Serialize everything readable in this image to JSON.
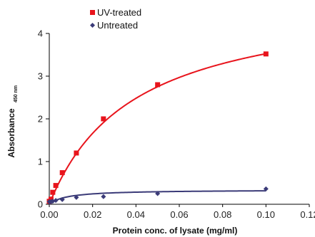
{
  "chart_data": {
    "type": "scatter",
    "xlabel": "Protein conc. of lysate (mg/ml)",
    "ylabel": "Absorbance",
    "ylabel_subscript": "450 nm",
    "xlim": [
      0,
      0.12
    ],
    "ylim": [
      0,
      4
    ],
    "x_ticks": [
      "0.00",
      "0.02",
      "0.04",
      "0.06",
      "0.08",
      "0.10",
      "0.12"
    ],
    "y_ticks": [
      "0",
      "1",
      "2",
      "3",
      "4"
    ],
    "legend_position": "top-left",
    "series": [
      {
        "name": "UV-treated",
        "marker": "square",
        "color": "#e8141c",
        "x": [
          0.0,
          0.0008,
          0.0016,
          0.003,
          0.006,
          0.0125,
          0.025,
          0.05,
          0.1
        ],
        "y": [
          0.07,
          0.12,
          0.28,
          0.44,
          0.74,
          1.2,
          2.0,
          2.8,
          3.52
        ],
        "fit": {
          "model": "hyperbolic",
          "vmax": 4.9,
          "k": 0.039
        }
      },
      {
        "name": "Untreated",
        "marker": "diamond",
        "color": "#3b3b78",
        "x": [
          0.0,
          0.0008,
          0.0016,
          0.003,
          0.006,
          0.0125,
          0.025,
          0.05,
          0.1
        ],
        "y": [
          0.06,
          0.06,
          0.07,
          0.09,
          0.11,
          0.16,
          0.18,
          0.25,
          0.36
        ],
        "fit": {
          "model": "hyperbolic",
          "vmax": 0.34,
          "k": 0.008
        }
      }
    ]
  }
}
